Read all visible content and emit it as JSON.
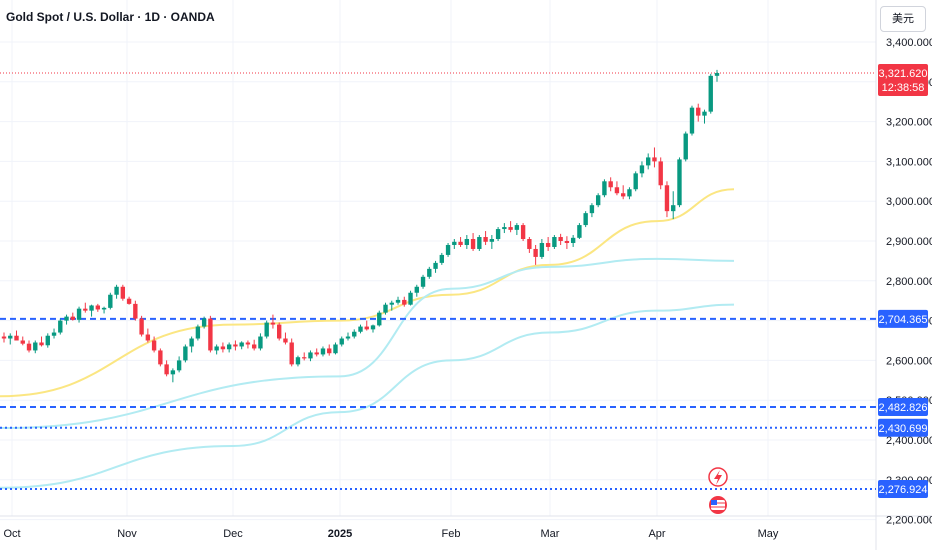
{
  "header": {
    "symbol_title": "Gold Spot / U.S. Dollar · 1D · OANDA",
    "currency_button": "美元"
  },
  "price_tag": {
    "price": "3,321.620",
    "countdown": "12:38:58",
    "color": "#f23645"
  },
  "colors": {
    "up": "#089981",
    "down": "#f23645",
    "ma_short": "#fbe682",
    "ma_mid": "#b2ebf2",
    "ma_long": "#b2ebf2",
    "hline": "#2962ff",
    "tag_blue": "#2962ff"
  },
  "icons": {
    "flash": "lightning-icon",
    "flag": "us-flag-icon"
  },
  "chart_data": {
    "type": "candlestick",
    "y_axis": {
      "ticks": [
        "3,400.000",
        "3,300.000",
        "3,200.000",
        "3,100.000",
        "3,000.000",
        "2,900.000",
        "2,800.000",
        "2,700.000",
        "2,600.000",
        "2,500.000",
        "2,400.000",
        "2,300.000",
        "2,200.000"
      ],
      "range": [
        2200,
        3400
      ]
    },
    "x_axis": {
      "ticks": [
        "Oct",
        "Nov",
        "Dec",
        "2025",
        "Feb",
        "Mar",
        "Apr",
        "May"
      ]
    },
    "horizontal_lines": [
      {
        "price": 2704.365,
        "label": "2,704.365",
        "style": "dashed"
      },
      {
        "price": 2482.826,
        "label": "2,482.826",
        "style": "dashed"
      },
      {
        "price": 2430.699,
        "label": "2,430.699",
        "style": "dotted"
      },
      {
        "price": 2276.924,
        "label": "2,276.924",
        "style": "dotted"
      }
    ],
    "moving_averages": [
      {
        "color": "yellow",
        "points": [
          [
            2510,
            "start"
          ],
          [
            2690,
            "Dec"
          ],
          [
            2700,
            "2025"
          ],
          [
            2765,
            "Feb"
          ],
          [
            2840,
            "Mar"
          ],
          [
            2950,
            "Apr"
          ],
          [
            3030,
            "end"
          ]
        ]
      },
      {
        "color": "lightblue-1",
        "points": [
          [
            2430,
            "start"
          ],
          [
            2560,
            "2025"
          ],
          [
            2780,
            "Feb"
          ],
          [
            2835,
            "Mar"
          ],
          [
            2855,
            "Apr"
          ],
          [
            2850,
            "end"
          ]
        ]
      },
      {
        "color": "lightblue-2",
        "points": [
          [
            2280,
            "start"
          ],
          [
            2385,
            "Dec"
          ],
          [
            2470,
            "2025"
          ],
          [
            2600,
            "Feb"
          ],
          [
            2670,
            "Mar"
          ],
          [
            2725,
            "Apr"
          ],
          [
            2740,
            "end"
          ]
        ]
      }
    ],
    "candles": [
      [
        2660,
        2670,
        2645,
        2655
      ],
      [
        2655,
        2668,
        2640,
        2662
      ],
      [
        2662,
        2675,
        2650,
        2650
      ],
      [
        2650,
        2660,
        2638,
        2642
      ],
      [
        2642,
        2650,
        2620,
        2625
      ],
      [
        2625,
        2650,
        2618,
        2645
      ],
      [
        2645,
        2660,
        2635,
        2638
      ],
      [
        2638,
        2668,
        2632,
        2662
      ],
      [
        2662,
        2680,
        2655,
        2670
      ],
      [
        2670,
        2705,
        2665,
        2700
      ],
      [
        2700,
        2715,
        2690,
        2710
      ],
      [
        2710,
        2720,
        2700,
        2702
      ],
      [
        2702,
        2735,
        2695,
        2730
      ],
      [
        2730,
        2745,
        2720,
        2725
      ],
      [
        2725,
        2740,
        2710,
        2738
      ],
      [
        2738,
        2742,
        2722,
        2728
      ],
      [
        2728,
        2735,
        2718,
        2732
      ],
      [
        2732,
        2770,
        2728,
        2765
      ],
      [
        2765,
        2790,
        2755,
        2785
      ],
      [
        2785,
        2790,
        2750,
        2755
      ],
      [
        2755,
        2760,
        2740,
        2742
      ],
      [
        2742,
        2750,
        2700,
        2705
      ],
      [
        2705,
        2712,
        2660,
        2665
      ],
      [
        2665,
        2680,
        2645,
        2650
      ],
      [
        2650,
        2660,
        2620,
        2625
      ],
      [
        2625,
        2630,
        2585,
        2590
      ],
      [
        2590,
        2600,
        2560,
        2565
      ],
      [
        2565,
        2580,
        2545,
        2575
      ],
      [
        2575,
        2610,
        2570,
        2600
      ],
      [
        2600,
        2640,
        2595,
        2635
      ],
      [
        2635,
        2660,
        2620,
        2655
      ],
      [
        2655,
        2690,
        2650,
        2685
      ],
      [
        2685,
        2710,
        2680,
        2705
      ],
      [
        2705,
        2712,
        2620,
        2625
      ],
      [
        2625,
        2640,
        2615,
        2635
      ],
      [
        2635,
        2645,
        2620,
        2628
      ],
      [
        2628,
        2645,
        2620,
        2640
      ],
      [
        2640,
        2650,
        2625,
        2635
      ],
      [
        2635,
        2648,
        2628,
        2645
      ],
      [
        2645,
        2650,
        2630,
        2640
      ],
      [
        2640,
        2652,
        2625,
        2630
      ],
      [
        2630,
        2668,
        2625,
        2660
      ],
      [
        2660,
        2700,
        2655,
        2695
      ],
      [
        2695,
        2715,
        2680,
        2690
      ],
      [
        2690,
        2695,
        2650,
        2655
      ],
      [
        2655,
        2670,
        2640,
        2645
      ],
      [
        2645,
        2655,
        2585,
        2590
      ],
      [
        2590,
        2612,
        2585,
        2608
      ],
      [
        2608,
        2620,
        2600,
        2605
      ],
      [
        2605,
        2625,
        2598,
        2620
      ],
      [
        2620,
        2630,
        2610,
        2615
      ],
      [
        2615,
        2635,
        2610,
        2630
      ],
      [
        2630,
        2640,
        2612,
        2618
      ],
      [
        2618,
        2645,
        2615,
        2640
      ],
      [
        2640,
        2660,
        2635,
        2655
      ],
      [
        2655,
        2670,
        2650,
        2660
      ],
      [
        2660,
        2678,
        2655,
        2672
      ],
      [
        2672,
        2690,
        2668,
        2685
      ],
      [
        2685,
        2700,
        2675,
        2678
      ],
      [
        2678,
        2690,
        2670,
        2688
      ],
      [
        2688,
        2725,
        2685,
        2720
      ],
      [
        2720,
        2745,
        2715,
        2740
      ],
      [
        2740,
        2750,
        2725,
        2745
      ],
      [
        2745,
        2760,
        2740,
        2752
      ],
      [
        2752,
        2760,
        2735,
        2740
      ],
      [
        2740,
        2775,
        2738,
        2770
      ],
      [
        2770,
        2790,
        2760,
        2785
      ],
      [
        2785,
        2815,
        2780,
        2810
      ],
      [
        2810,
        2835,
        2805,
        2830
      ],
      [
        2830,
        2850,
        2820,
        2845
      ],
      [
        2845,
        2870,
        2840,
        2865
      ],
      [
        2865,
        2895,
        2860,
        2890
      ],
      [
        2890,
        2905,
        2880,
        2898
      ],
      [
        2898,
        2910,
        2885,
        2890
      ],
      [
        2890,
        2915,
        2880,
        2905
      ],
      [
        2905,
        2920,
        2875,
        2880
      ],
      [
        2880,
        2915,
        2875,
        2910
      ],
      [
        2910,
        2925,
        2890,
        2898
      ],
      [
        2898,
        2915,
        2880,
        2905
      ],
      [
        2905,
        2935,
        2900,
        2930
      ],
      [
        2930,
        2945,
        2920,
        2935
      ],
      [
        2935,
        2950,
        2922,
        2928
      ],
      [
        2928,
        2945,
        2915,
        2940
      ],
      [
        2940,
        2945,
        2900,
        2905
      ],
      [
        2905,
        2910,
        2870,
        2880
      ],
      [
        2880,
        2890,
        2840,
        2860
      ],
      [
        2860,
        2905,
        2855,
        2895
      ],
      [
        2895,
        2910,
        2875,
        2885
      ],
      [
        2885,
        2915,
        2880,
        2910
      ],
      [
        2910,
        2918,
        2890,
        2900
      ],
      [
        2900,
        2912,
        2880,
        2895
      ],
      [
        2895,
        2915,
        2885,
        2908
      ],
      [
        2908,
        2945,
        2905,
        2940
      ],
      [
        2940,
        2975,
        2935,
        2970
      ],
      [
        2970,
        2995,
        2960,
        2990
      ],
      [
        2990,
        3020,
        2985,
        3015
      ],
      [
        3015,
        3055,
        3010,
        3050
      ],
      [
        3050,
        3060,
        3025,
        3035
      ],
      [
        3035,
        3050,
        3015,
        3020
      ],
      [
        3020,
        3040,
        3005,
        3012
      ],
      [
        3012,
        3035,
        3005,
        3030
      ],
      [
        3030,
        3075,
        3025,
        3070
      ],
      [
        3070,
        3100,
        3060,
        3090
      ],
      [
        3090,
        3120,
        3080,
        3110
      ],
      [
        3110,
        3135,
        3085,
        3100
      ],
      [
        3100,
        3110,
        3030,
        3040
      ],
      [
        3040,
        3050,
        2960,
        2975
      ],
      [
        2975,
        3025,
        2955,
        2990
      ],
      [
        2990,
        3110,
        2985,
        3105
      ],
      [
        3105,
        3175,
        3100,
        3170
      ],
      [
        3170,
        3240,
        3165,
        3235
      ],
      [
        3235,
        3245,
        3200,
        3215
      ],
      [
        3215,
        3230,
        3195,
        3225
      ],
      [
        3225,
        3320,
        3220,
        3315
      ],
      [
        3315,
        3330,
        3300,
        3322
      ]
    ]
  }
}
